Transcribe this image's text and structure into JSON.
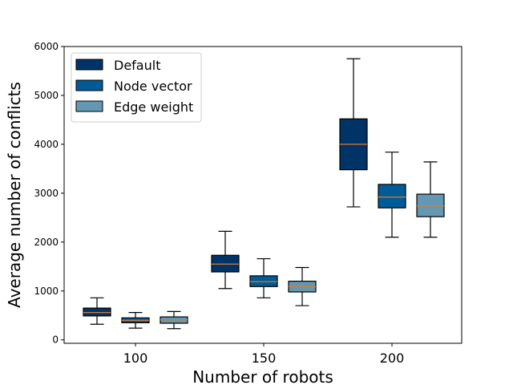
{
  "chart_data": {
    "type": "box",
    "title": "",
    "xlabel": "Number of robots",
    "ylabel": "Average number of conflicts",
    "categories": [
      "100",
      "150",
      "200"
    ],
    "ylim": [
      -70,
      6000
    ],
    "yticks": [
      0,
      1000,
      2000,
      3000,
      4000,
      5000,
      6000
    ],
    "ytick_labels": [
      "0",
      "1000",
      "2000",
      "3000",
      "4000",
      "5000",
      "6000"
    ],
    "grid": false,
    "legend_position": "top-left",
    "series": [
      {
        "name": "Default",
        "color": "#003366",
        "boxes": [
          {
            "whislo": 320,
            "q1": 490,
            "med": 560,
            "q3": 650,
            "whishi": 860
          },
          {
            "whislo": 1050,
            "q1": 1390,
            "med": 1550,
            "q3": 1730,
            "whishi": 2220
          },
          {
            "whislo": 2720,
            "q1": 3480,
            "med": 4000,
            "q3": 4520,
            "whishi": 5750
          }
        ]
      },
      {
        "name": "Node vector",
        "color": "#005b96",
        "boxes": [
          {
            "whislo": 240,
            "q1": 350,
            "med": 400,
            "q3": 450,
            "whishi": 560
          },
          {
            "whislo": 860,
            "q1": 1090,
            "med": 1190,
            "q3": 1310,
            "whishi": 1660
          },
          {
            "whislo": 2100,
            "q1": 2700,
            "med": 2920,
            "q3": 3180,
            "whishi": 3840
          }
        ]
      },
      {
        "name": "Edge weight",
        "color": "#6497b1",
        "boxes": [
          {
            "whislo": 230,
            "q1": 340,
            "med": 410,
            "q3": 470,
            "whishi": 580
          },
          {
            "whislo": 700,
            "q1": 980,
            "med": 1090,
            "q3": 1200,
            "whishi": 1480
          },
          {
            "whislo": 2100,
            "q1": 2520,
            "med": 2740,
            "q3": 2980,
            "whishi": 3640
          }
        ]
      }
    ],
    "median_color": "#e07b2a"
  }
}
